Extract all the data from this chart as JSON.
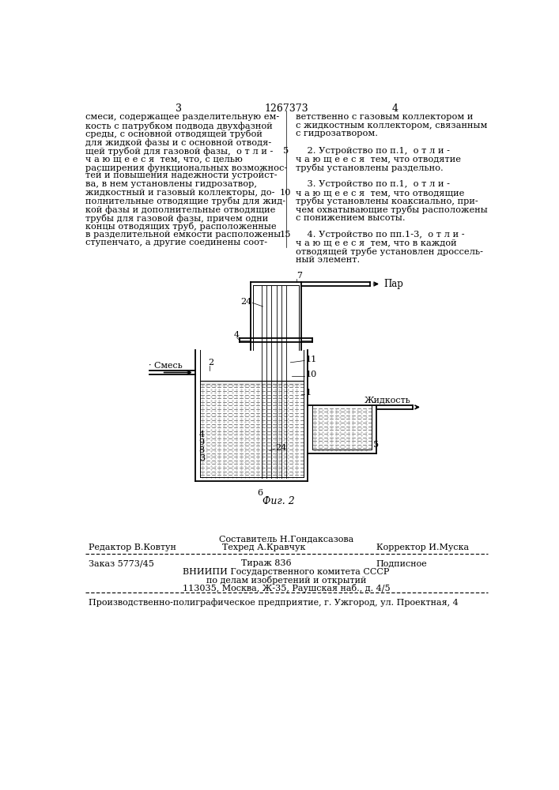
{
  "bg_color": "#ffffff",
  "page_number_left": "3",
  "page_number_center": "1267373",
  "page_number_right": "4",
  "col1_text": [
    "смеси, содержащее разделительную ем-",
    "кость с патрубком подвода двухфазной",
    "среды, с основной отводящей трубой",
    "для жидкой фазы и с основной отводя-",
    "щей трубой для газовой фазы,  о т л и -",
    "ч а ю щ е е с я  тем, что, с целью",
    "расширения функциональных возможнос-",
    "тей и повышения надежности устройст-",
    "ва, в нем установлены гидрозатвор,",
    "жидкостный и газовый коллекторы, до-",
    "полнительные отводящие трубы для жид-",
    "кой фазы и дополнительные отводящие",
    "трубы для газовой фазы, причем одни",
    "концы отводящих труб, расположенные",
    "в разделительной емкости расположены",
    "ступенчато, а другие соединены соот-"
  ],
  "col2_text": [
    "ветственно с газовым коллектором и",
    "с жидкостным коллектором, связанным",
    "с гидрозатвором.",
    "",
    "    2. Устройство по п.1,  о т л и -",
    "ч а ю щ е е с я  тем, что отводятие",
    "трубы установлены раздельно.",
    "",
    "    3. Устройство по п.1,  о т л и -",
    "ч а ю щ е е с я  тем, что отводящие",
    "трубы установлены коаксиально, при-",
    "чем охватывающие трубы расположены",
    "с понижением высоты.",
    "",
    "    4. Устройство по пп.1-3,  о т л и -",
    "ч а ю щ е е с я  тем, что в каждой",
    "отводящей трубе установлен дроссель-",
    "ный элемент."
  ],
  "line_numbers": {
    "4": "5",
    "9": "10",
    "14": "15"
  },
  "fig_caption": "Фиг. 2",
  "footer_sestavitel": "Составитель Н.Гондаксазова",
  "footer_redaktor": "Редактор В.Ковтун",
  "footer_tehred": "Техред А.Кравчук",
  "footer_korrektor": "Корректор И.Муска",
  "footer_zakaz": "Заказ 5773/45",
  "footer_tirazh": "Тираж 836",
  "footer_podpisnoe": "Подписное",
  "footer_vniipи": "ВНИИПИ Государственного комитета СССР",
  "footer_dela": "по делам изобретений и открытий",
  "footer_addr": "113035, Москва, Ж-35, Раушская наб., д. 4/5",
  "footer_last": "Производственно-полиграфическое предприятие, г. Ужгород, ул. Проектная, 4"
}
